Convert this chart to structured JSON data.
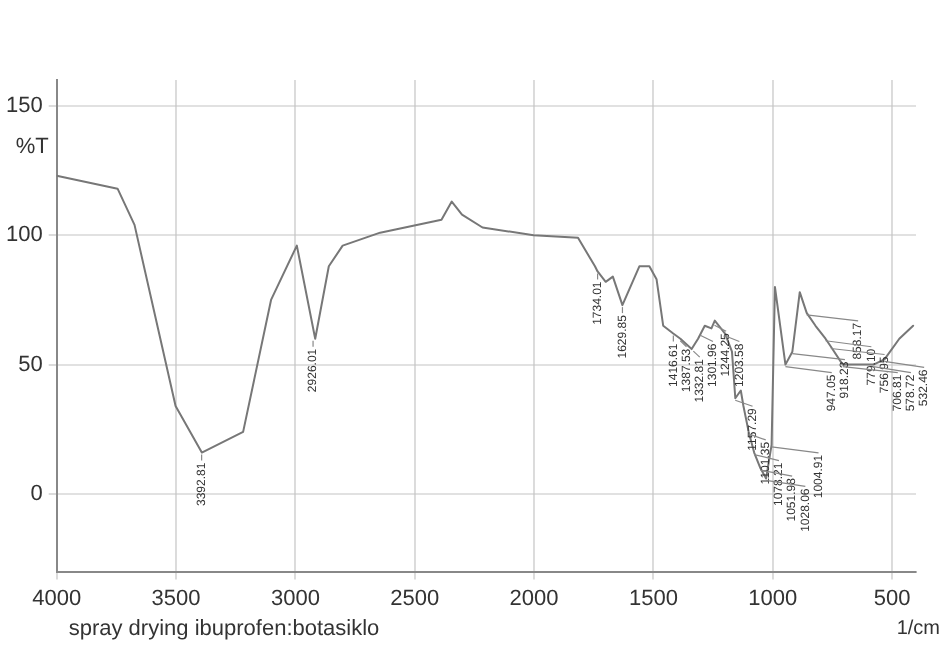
{
  "chart_data": {
    "type": "line",
    "xlabel": "1/cm",
    "ylabel": "%T",
    "x": [
      4000,
      3745,
      3674,
      3502,
      3392,
      3219,
      3102,
      2994,
      2917,
      2860,
      2802,
      2645,
      2388,
      2345,
      2302,
      2216,
      2002,
      1816,
      1745,
      1734,
      1700,
      1670,
      1630,
      1559,
      1517,
      1487,
      1459,
      1417,
      1387,
      1340,
      1313,
      1285,
      1257,
      1243,
      1200,
      1171,
      1157,
      1134,
      1123,
      1101,
      1078,
      1052,
      1028,
      1005,
      991,
      947,
      918,
      887,
      858,
      821,
      779,
      757,
      707,
      578,
      532,
      470,
      412
    ],
    "series": [
      {
        "color": "#777777",
        "values": [
          123,
          118,
          104,
          34,
          16,
          24,
          75,
          96,
          60,
          88,
          96,
          101,
          106,
          113,
          108,
          103,
          100,
          99,
          88,
          86,
          82,
          84,
          73,
          88,
          88,
          83,
          65,
          62,
          60,
          56,
          60,
          65,
          64,
          67,
          62,
          55,
          37,
          40,
          34,
          24,
          16,
          10,
          6,
          19,
          80,
          50,
          55,
          78,
          70,
          65,
          60,
          57,
          50,
          50,
          52,
          60,
          65
        ]
      }
    ],
    "xlim": [
      4000,
      400
    ],
    "xticks": [
      4000,
      3500,
      3000,
      2500,
      2000,
      1500,
      1000,
      500
    ],
    "ylim": [
      -30,
      160
    ],
    "yticks": [
      0,
      50,
      100,
      150
    ],
    "grid": true,
    "legend": false,
    "marker": "none",
    "line_style": "solid",
    "annotations": [
      "spray drying ibuprofen:botasiklo",
      {
        "text": "3392.81",
        "x": 3392.81,
        "y": 16
      },
      {
        "text": "2926.01",
        "x": 2926.01,
        "y": 60
      },
      {
        "text": "1734.01",
        "x": 1734.01,
        "y": 86
      },
      {
        "text": "1629.85",
        "x": 1629.85,
        "y": 73
      },
      {
        "text": "1416.61",
        "x": 1416.61,
        "y": 62
      },
      {
        "text": "1387.53",
        "x": 1387.53,
        "y": 60
      },
      {
        "text": "1332.81",
        "x": 1332.81,
        "y": 56
      },
      {
        "text": "1301.96",
        "x": 1301.96,
        "y": 62
      },
      {
        "text": "1244.25",
        "x": 1244.25,
        "y": 66
      },
      {
        "text": "1203.58",
        "x": 1203.58,
        "y": 62
      },
      {
        "text": "1157.29",
        "x": 1157.29,
        "y": 37
      },
      {
        "text": "1101.35",
        "x": 1101.35,
        "y": 24
      },
      {
        "text": "1078.21",
        "x": 1078.21,
        "y": 16
      },
      {
        "text": "1051.98",
        "x": 1051.98,
        "y": 10
      },
      {
        "text": "1028.06",
        "x": 1028.06,
        "y": 6
      },
      {
        "text": "1004.91",
        "x": 1004.91,
        "y": 19
      },
      {
        "text": "947.05",
        "x": 947.05,
        "y": 50
      },
      {
        "text": "918.23",
        "x": 918.23,
        "y": 55
      },
      {
        "text": "858.17",
        "x": 858.17,
        "y": 70
      },
      {
        "text": "779.10",
        "x": 779.1,
        "y": 60
      },
      {
        "text": "756.95",
        "x": 756.95,
        "y": 57
      },
      {
        "text": "706.81",
        "x": 706.81,
        "y": 50
      },
      {
        "text": "578.72",
        "x": 578.72,
        "y": 50
      },
      {
        "text": "532.46",
        "x": 532.46,
        "y": 52
      }
    ]
  }
}
